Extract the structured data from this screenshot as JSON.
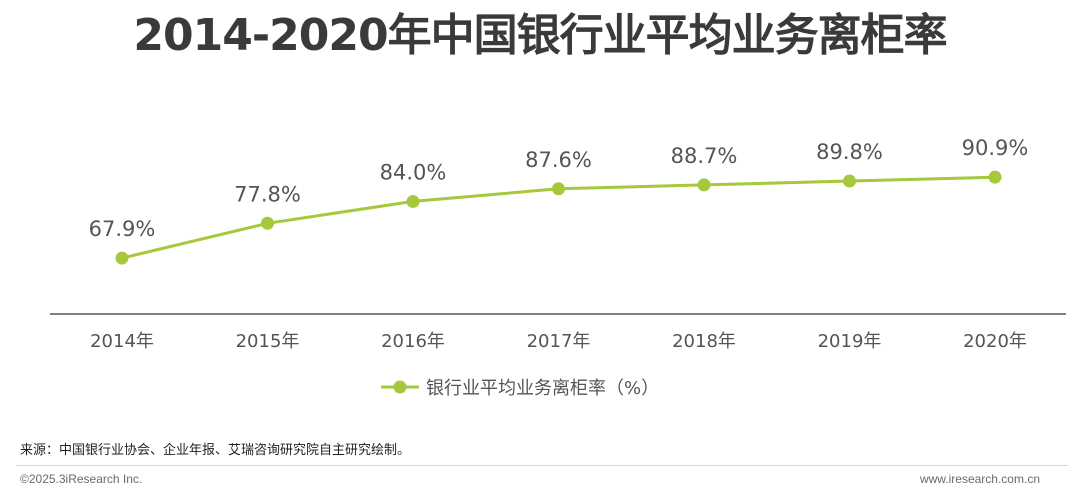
{
  "chart_data": {
    "type": "line",
    "title": "2014-2020年中国银行业平均业务离柜率",
    "categories": [
      "2014年",
      "2015年",
      "2016年",
      "2017年",
      "2018年",
      "2019年",
      "2020年"
    ],
    "series": [
      {
        "name": "银行业平均业务离柜率（%）",
        "values": [
          67.9,
          77.8,
          84.0,
          87.6,
          88.7,
          89.8,
          90.9
        ],
        "labels": [
          "67.9%",
          "77.8%",
          "84.0%",
          "87.6%",
          "88.7%",
          "89.8%",
          "90.9%"
        ]
      }
    ],
    "ylim": [
      52,
      110
    ],
    "grid": false,
    "legend_position": "bottom-center",
    "colors": {
      "series": "#a6c83c",
      "axis": "#555555",
      "label": "#555555"
    }
  },
  "footer": {
    "source": "来源：中国银行业协会、企业年报、艾瑞咨询研究院自主研究绘制。",
    "copyright": "©2025.3iResearch Inc.",
    "website": "www.iresearch.com.cn"
  }
}
